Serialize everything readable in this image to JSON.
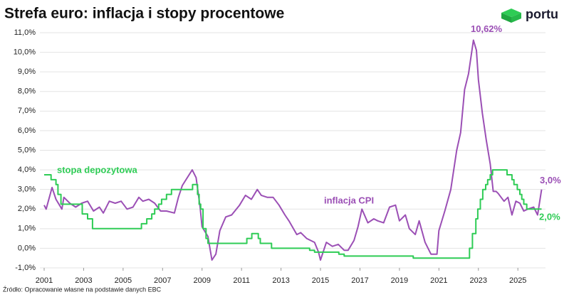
{
  "chart_data": {
    "type": "line",
    "title": "Strefa euro: inflacja i stopy procentowe",
    "logo": "portu",
    "source": "Źródło:  Opracowanie własne na podstawie danych EBC",
    "xlim": [
      2001,
      2026.4
    ],
    "xticks": [
      2001,
      2003,
      2005,
      2007,
      2009,
      2011,
      2013,
      2015,
      2017,
      2019,
      2021,
      2023,
      2025
    ],
    "ylim": [
      -1,
      11
    ],
    "yticks": [
      {
        "value": -1,
        "label": "-1,0%"
      },
      {
        "value": 0,
        "label": "0,0%"
      },
      {
        "value": 1,
        "label": "1,0%"
      },
      {
        "value": 2,
        "label": "2,0%"
      },
      {
        "value": 3,
        "label": "3,0%"
      },
      {
        "value": 4,
        "label": "4,0%"
      },
      {
        "value": 5,
        "label": "5,0%"
      },
      {
        "value": 6,
        "label": "6,0%"
      },
      {
        "value": 7,
        "label": "7,0%"
      },
      {
        "value": 8,
        "label": "8,0%"
      },
      {
        "value": 9,
        "label": "9,0%"
      },
      {
        "value": 10,
        "label": "10,0%"
      },
      {
        "value": 11,
        "label": "11,0%"
      }
    ],
    "grid": true,
    "series": [
      {
        "name": "inflacja CPI",
        "color": "#9b4fb5",
        "x": [
          2001.0,
          2001.1,
          2001.4,
          2001.6,
          2001.9,
          2002.0,
          2002.3,
          2002.6,
          2002.9,
          2003.2,
          2003.5,
          2003.8,
          2004.0,
          2004.3,
          2004.6,
          2004.9,
          2005.2,
          2005.5,
          2005.8,
          2006.0,
          2006.3,
          2006.6,
          2006.9,
          2007.2,
          2007.6,
          2007.8,
          2008.0,
          2008.5,
          2008.7,
          2008.9,
          2009.0,
          2009.3,
          2009.5,
          2009.7,
          2009.9,
          2010.2,
          2010.5,
          2010.9,
          2011.2,
          2011.5,
          2011.8,
          2012.0,
          2012.3,
          2012.6,
          2012.9,
          2013.2,
          2013.4,
          2013.8,
          2014.0,
          2014.3,
          2014.7,
          2014.9,
          2015.0,
          2015.3,
          2015.6,
          2015.9,
          2016.2,
          2016.4,
          2016.7,
          2016.9,
          2017.1,
          2017.4,
          2017.7,
          2017.9,
          2018.2,
          2018.5,
          2018.8,
          2019.0,
          2019.3,
          2019.5,
          2019.8,
          2020.0,
          2020.3,
          2020.6,
          2020.9,
          2021.0,
          2021.3,
          2021.6,
          2021.9,
          2022.1,
          2022.3,
          2022.5,
          2022.75,
          2022.9,
          2023.0,
          2023.2,
          2023.4,
          2023.6,
          2023.75,
          2023.9,
          2024.0,
          2024.3,
          2024.5,
          2024.7,
          2024.9,
          2025.1,
          2025.3,
          2025.5,
          2025.8,
          2026.0,
          2026.2
        ],
        "values": [
          2.2,
          2.0,
          3.1,
          2.5,
          2.0,
          2.6,
          2.3,
          2.1,
          2.3,
          2.4,
          1.9,
          2.1,
          1.8,
          2.4,
          2.3,
          2.4,
          2.0,
          2.1,
          2.6,
          2.4,
          2.5,
          2.3,
          1.9,
          1.9,
          1.8,
          2.6,
          3.2,
          4.0,
          3.6,
          2.1,
          1.1,
          0.6,
          -0.6,
          -0.3,
          0.9,
          1.6,
          1.7,
          2.2,
          2.7,
          2.5,
          3.0,
          2.7,
          2.6,
          2.6,
          2.2,
          1.7,
          1.4,
          0.7,
          0.8,
          0.5,
          0.3,
          -0.2,
          -0.6,
          0.3,
          0.1,
          0.2,
          -0.1,
          -0.1,
          0.4,
          1.1,
          2.0,
          1.3,
          1.5,
          1.4,
          1.3,
          2.1,
          2.2,
          1.4,
          1.7,
          1.0,
          0.7,
          1.4,
          0.3,
          -0.3,
          -0.3,
          0.9,
          1.9,
          3.0,
          5.0,
          5.9,
          8.1,
          8.9,
          10.62,
          10.1,
          8.6,
          6.9,
          5.5,
          4.3,
          2.9,
          2.9,
          2.8,
          2.4,
          2.6,
          1.7,
          2.4,
          2.3,
          1.9,
          2.0,
          2.1,
          1.7,
          3.0
        ]
      },
      {
        "name": "stopa depozytowa",
        "color": "#2ecc55",
        "x": [
          2001,
          2001.35,
          2001.35,
          2001.6,
          2001.6,
          2001.7,
          2001.7,
          2001.85,
          2001.85,
          2002.93,
          2002.93,
          2003.2,
          2003.2,
          2003.45,
          2003.45,
          2005.93,
          2005.93,
          2006.2,
          2006.2,
          2006.45,
          2006.45,
          2006.6,
          2006.6,
          2006.8,
          2006.8,
          2006.95,
          2006.95,
          2007.2,
          2007.2,
          2007.45,
          2007.45,
          2008.52,
          2008.52,
          2008.77,
          2008.77,
          2008.85,
          2008.85,
          2008.93,
          2008.93,
          2009.05,
          2009.05,
          2009.2,
          2009.2,
          2009.3,
          2009.3,
          2011.27,
          2011.27,
          2011.52,
          2011.52,
          2011.85,
          2011.85,
          2011.95,
          2011.95,
          2012.52,
          2012.52,
          2014.45,
          2014.45,
          2014.7,
          2014.7,
          2015.93,
          2015.93,
          2016.2,
          2016.2,
          2019.7,
          2019.7,
          2022.55,
          2022.55,
          2022.7,
          2022.7,
          2022.87,
          2022.87,
          2022.97,
          2022.97,
          2023.1,
          2023.1,
          2023.22,
          2023.22,
          2023.37,
          2023.37,
          2023.47,
          2023.47,
          2023.6,
          2023.6,
          2023.72,
          2023.72,
          2024.45,
          2024.45,
          2024.7,
          2024.7,
          2024.8,
          2024.8,
          2024.97,
          2024.97,
          2025.1,
          2025.1,
          2025.2,
          2025.2,
          2025.3,
          2025.3,
          2025.45,
          2025.45,
          2026.2
        ],
        "values": [
          3.75,
          3.75,
          3.5,
          3.5,
          3.25,
          3.25,
          2.75,
          2.75,
          2.25,
          2.25,
          1.75,
          1.75,
          1.5,
          1.5,
          1.0,
          1.0,
          1.25,
          1.25,
          1.5,
          1.5,
          1.75,
          1.75,
          2.0,
          2.0,
          2.25,
          2.25,
          2.5,
          2.5,
          2.75,
          2.75,
          3.0,
          3.0,
          3.25,
          3.25,
          2.75,
          2.75,
          2.25,
          2.25,
          2.0,
          2.0,
          1.0,
          1.0,
          0.5,
          0.5,
          0.25,
          0.25,
          0.5,
          0.5,
          0.75,
          0.75,
          0.5,
          0.5,
          0.25,
          0.25,
          0.0,
          0.0,
          -0.1,
          -0.1,
          -0.2,
          -0.2,
          -0.3,
          -0.3,
          -0.4,
          -0.4,
          -0.5,
          -0.5,
          0.0,
          0.0,
          0.75,
          0.75,
          1.5,
          1.5,
          2.0,
          2.0,
          2.5,
          2.5,
          3.0,
          3.0,
          3.25,
          3.25,
          3.5,
          3.5,
          3.75,
          3.75,
          4.0,
          4.0,
          3.75,
          3.75,
          3.5,
          3.5,
          3.25,
          3.25,
          3.0,
          3.0,
          2.75,
          2.75,
          2.5,
          2.5,
          2.25,
          2.25,
          2.0,
          2.0
        ]
      }
    ],
    "annotations": [
      {
        "value": 10.62,
        "label": "10,62%",
        "color": "#9b4fb5"
      },
      {
        "value": 3.0,
        "label": "3,0%",
        "color": "#9b4fb5"
      },
      {
        "value": 2.0,
        "label": "2,0%",
        "color": "#2ecc55"
      }
    ]
  }
}
